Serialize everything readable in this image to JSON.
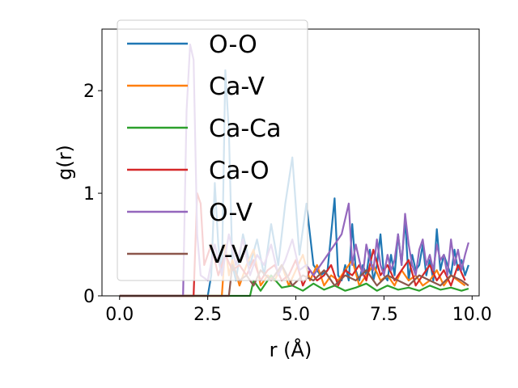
{
  "chart_data": {
    "type": "line",
    "title": "",
    "xlabel": "r (Å)",
    "ylabel": "g(r)",
    "xlim": [
      -0.5,
      10.2
    ],
    "ylim": [
      0,
      2.6
    ],
    "xticks": [
      "0.0",
      "2.5",
      "5.0",
      "7.5",
      "10.0"
    ],
    "xtick_values": [
      0,
      2.5,
      5,
      7.5,
      10
    ],
    "yticks": [
      "0",
      "1",
      "2"
    ],
    "ytick_values": [
      0,
      1,
      2
    ],
    "grid": false,
    "legend_position": "upper-left",
    "series": [
      {
        "name": "O-O",
        "color": "#1f77b4",
        "x": [
          0,
          2.5,
          2.6,
          2.7,
          2.8,
          2.9,
          3.0,
          3.1,
          3.2,
          3.3,
          3.5,
          3.7,
          3.9,
          4.1,
          4.3,
          4.5,
          4.7,
          4.9,
          5.1,
          5.3,
          5.5,
          5.7,
          5.9,
          6.0,
          6.1,
          6.2,
          6.3,
          6.4,
          6.5,
          6.6,
          6.7,
          6.8,
          6.9,
          7.0,
          7.1,
          7.2,
          7.3,
          7.4,
          7.5,
          7.6,
          7.7,
          7.8,
          7.9,
          8.0,
          8.1,
          8.2,
          8.3,
          8.4,
          8.5,
          8.6,
          8.7,
          8.8,
          8.9,
          9.0,
          9.1,
          9.2,
          9.3,
          9.4,
          9.5,
          9.6,
          9.7,
          9.8,
          9.9
        ],
        "y": [
          0,
          0,
          0.2,
          1.1,
          0.5,
          0.2,
          2.2,
          1.6,
          0.3,
          0.15,
          0.6,
          0.3,
          0.55,
          0.2,
          0.7,
          0.3,
          0.9,
          1.35,
          0.4,
          0.9,
          0.3,
          0.2,
          0.25,
          0.6,
          0.95,
          0.2,
          0.15,
          0.3,
          0.15,
          0.7,
          0.25,
          0.15,
          0.3,
          0.2,
          0.45,
          0.15,
          0.3,
          0.6,
          0.2,
          0.15,
          0.4,
          0.2,
          0.6,
          0.3,
          0.75,
          0.15,
          0.4,
          0.25,
          0.3,
          0.5,
          0.2,
          0.35,
          0.15,
          0.65,
          0.25,
          0.4,
          0.3,
          0.2,
          0.45,
          0.25,
          0.35,
          0.2,
          0.3
        ]
      },
      {
        "name": "Ca-V",
        "color": "#ff7f0e",
        "x": [
          0,
          2.9,
          3.0,
          3.1,
          3.2,
          3.4,
          3.6,
          3.8,
          4.0,
          4.2,
          4.4,
          4.6,
          4.8,
          5.0,
          5.2,
          5.4,
          5.6,
          5.8,
          6.0,
          6.2,
          6.4,
          6.6,
          6.8,
          7.0,
          7.2,
          7.4,
          7.6,
          7.8,
          8.0,
          8.2,
          8.4,
          8.6,
          8.8,
          9.0,
          9.2,
          9.4,
          9.6,
          9.8
        ],
        "y": [
          0,
          0,
          0.5,
          0.2,
          0.35,
          0.1,
          0.3,
          0.45,
          0.1,
          0.2,
          0.15,
          0.3,
          0.1,
          0.25,
          0.4,
          0.15,
          0.3,
          0.1,
          0.2,
          0.15,
          0.25,
          0.35,
          0.1,
          0.2,
          0.3,
          0.15,
          0.2,
          0.1,
          0.25,
          0.15,
          0.2,
          0.1,
          0.15,
          0.25,
          0.1,
          0.2,
          0.15,
          0.1
        ]
      },
      {
        "name": "Ca-Ca",
        "color": "#2ca02c",
        "x": [
          0,
          3.7,
          3.8,
          4.0,
          4.3,
          4.6,
          4.9,
          5.2,
          5.5,
          5.8,
          6.1,
          6.4,
          6.7,
          7.0,
          7.3,
          7.6,
          7.9,
          8.2,
          8.5,
          8.8,
          9.1,
          9.4,
          9.7,
          9.9
        ],
        "y": [
          0,
          0,
          0.15,
          0.05,
          0.2,
          0.08,
          0.1,
          0.05,
          0.12,
          0.06,
          0.1,
          0.05,
          0.08,
          0.12,
          0.05,
          0.1,
          0.06,
          0.08,
          0.05,
          0.1,
          0.06,
          0.08,
          0.05,
          0.07
        ]
      },
      {
        "name": "Ca-O",
        "color": "#d62728",
        "x": [
          0,
          2.1,
          2.2,
          2.3,
          2.4,
          2.6,
          2.8,
          3.0,
          3.2,
          3.4,
          3.6,
          3.8,
          4.0,
          4.2,
          4.4,
          4.6,
          4.8,
          5.0,
          5.2,
          5.4,
          5.6,
          5.8,
          6.0,
          6.2,
          6.4,
          6.6,
          6.8,
          7.0,
          7.2,
          7.4,
          7.6,
          7.8,
          8.0,
          8.2,
          8.4,
          8.6,
          8.8,
          9.0,
          9.2,
          9.4,
          9.6,
          9.8
        ],
        "y": [
          0,
          0,
          1.0,
          0.9,
          0.3,
          0.5,
          0.2,
          0.4,
          0.25,
          0.3,
          0.2,
          0.35,
          0.15,
          0.25,
          0.3,
          0.15,
          0.2,
          0.35,
          0.1,
          0.25,
          0.15,
          0.2,
          0.3,
          0.1,
          0.25,
          0.2,
          0.3,
          0.15,
          0.45,
          0.2,
          0.3,
          0.15,
          0.25,
          0.35,
          0.1,
          0.2,
          0.3,
          0.15,
          0.25,
          0.1,
          0.3,
          0.15
        ]
      },
      {
        "name": "O-V",
        "color": "#9467bd",
        "x": [
          0,
          1.8,
          1.9,
          2.0,
          2.1,
          2.2,
          2.3,
          2.5,
          2.7,
          2.9,
          3.1,
          3.3,
          3.5,
          3.7,
          3.9,
          4.1,
          4.3,
          4.5,
          4.7,
          4.9,
          5.1,
          5.3,
          5.5,
          5.7,
          5.9,
          6.1,
          6.3,
          6.5,
          6.6,
          6.7,
          6.8,
          6.9,
          7.0,
          7.1,
          7.2,
          7.3,
          7.4,
          7.5,
          7.6,
          7.7,
          7.8,
          7.9,
          8.0,
          8.1,
          8.2,
          8.3,
          8.4,
          8.5,
          8.6,
          8.7,
          8.8,
          8.9,
          9.0,
          9.1,
          9.2,
          9.3,
          9.4,
          9.5,
          9.6,
          9.7,
          9.8,
          9.9
        ],
        "y": [
          0,
          0,
          1.8,
          2.45,
          2.3,
          0.6,
          0.2,
          0.15,
          0.5,
          0.2,
          0.6,
          0.3,
          0.55,
          0.2,
          0.4,
          0.3,
          0.5,
          0.2,
          0.35,
          0.55,
          0.25,
          0.3,
          0.2,
          0.3,
          0.4,
          0.5,
          0.6,
          0.9,
          0.3,
          0.5,
          0.35,
          0.2,
          0.5,
          0.35,
          0.25,
          0.55,
          0.3,
          0.2,
          0.4,
          0.25,
          0.35,
          0.6,
          0.3,
          0.8,
          0.5,
          0.3,
          0.2,
          0.45,
          0.55,
          0.3,
          0.4,
          0.25,
          0.5,
          0.35,
          0.4,
          0.2,
          0.55,
          0.3,
          0.45,
          0.25,
          0.4,
          0.52
        ]
      },
      {
        "name": "V-V",
        "color": "#8c564b",
        "x": [
          0,
          3.1,
          3.2,
          3.4,
          3.6,
          3.8,
          4.0,
          4.3,
          4.6,
          4.9,
          5.2,
          5.5,
          5.8,
          6.1,
          6.4,
          6.7,
          7.0,
          7.3,
          7.6,
          7.9,
          8.2,
          8.5,
          8.8,
          9.1,
          9.4,
          9.7,
          9.9
        ],
        "y": [
          0,
          0,
          0.3,
          0.15,
          0.2,
          0.1,
          0.25,
          0.15,
          0.3,
          0.1,
          0.2,
          0.15,
          0.25,
          0.1,
          0.2,
          0.15,
          0.25,
          0.1,
          0.2,
          0.15,
          0.1,
          0.2,
          0.15,
          0.1,
          0.2,
          0.15,
          0.1
        ]
      }
    ]
  }
}
